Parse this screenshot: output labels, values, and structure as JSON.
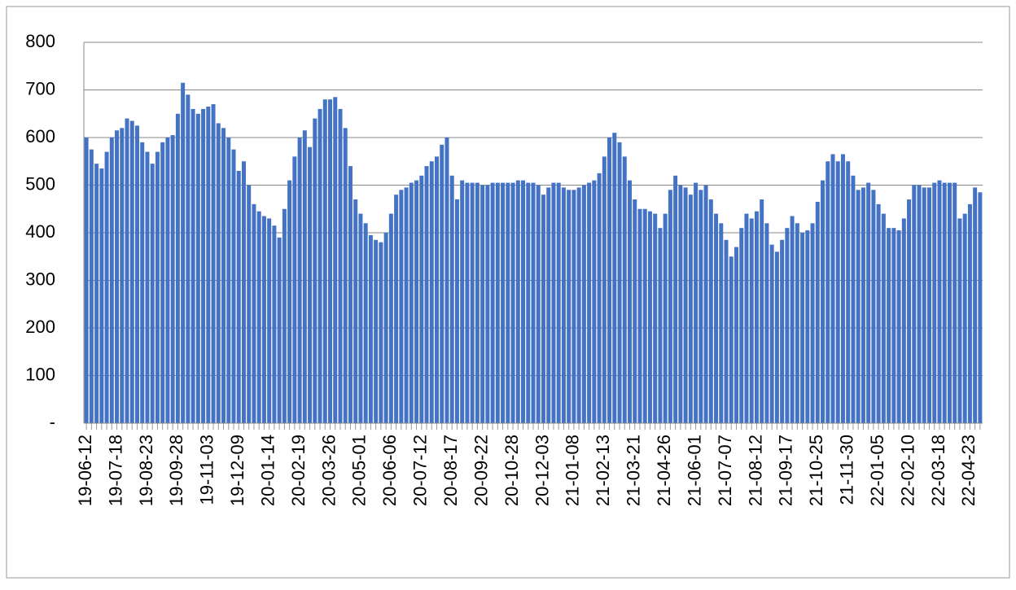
{
  "chart_data": {
    "type": "bar",
    "categories": [
      "19-06-12",
      null,
      null,
      null,
      null,
      null,
      "19-07-18",
      null,
      null,
      null,
      null,
      null,
      "19-08-23",
      null,
      null,
      null,
      null,
      null,
      "19-09-28",
      null,
      null,
      null,
      null,
      null,
      "19-11-03",
      null,
      null,
      null,
      null,
      null,
      "19-12-09",
      null,
      null,
      null,
      null,
      null,
      "20-01-14",
      null,
      null,
      null,
      null,
      null,
      "20-02-19",
      null,
      null,
      null,
      null,
      null,
      "20-03-26",
      null,
      null,
      null,
      null,
      null,
      "20-05-01",
      null,
      null,
      null,
      null,
      null,
      "20-06-06",
      null,
      null,
      null,
      null,
      null,
      "20-07-12",
      null,
      null,
      null,
      null,
      null,
      "20-08-17",
      null,
      null,
      null,
      null,
      null,
      "20-09-22",
      null,
      null,
      null,
      null,
      null,
      "20-10-28",
      null,
      null,
      null,
      null,
      null,
      "20-12-03",
      null,
      null,
      null,
      null,
      null,
      "21-01-08",
      null,
      null,
      null,
      null,
      null,
      "21-02-13",
      null,
      null,
      null,
      null,
      null,
      "21-03-21",
      null,
      null,
      null,
      null,
      null,
      "21-04-26",
      null,
      null,
      null,
      null,
      null,
      "21-06-01",
      null,
      null,
      null,
      null,
      null,
      "21-07-07",
      null,
      null,
      null,
      null,
      null,
      "21-08-12",
      null,
      null,
      null,
      null,
      null,
      "21-09-17",
      null,
      null,
      null,
      null,
      null,
      "21-10-25",
      null,
      null,
      null,
      null,
      null,
      "21-11-30",
      null,
      null,
      null,
      null,
      null,
      "22-01-05",
      null,
      null,
      null,
      null,
      null,
      "22-02-10",
      null,
      null,
      null,
      null,
      null,
      "22-03-18",
      null,
      null,
      null,
      null,
      null,
      "22-04-23",
      null,
      null
    ],
    "values": [
      600,
      575,
      545,
      535,
      570,
      600,
      615,
      620,
      640,
      635,
      625,
      590,
      570,
      545,
      570,
      590,
      600,
      605,
      650,
      715,
      690,
      660,
      650,
      660,
      665,
      670,
      630,
      620,
      600,
      575,
      530,
      550,
      500,
      460,
      445,
      435,
      430,
      415,
      390,
      450,
      510,
      560,
      600,
      615,
      580,
      640,
      660,
      680,
      680,
      685,
      660,
      620,
      540,
      470,
      440,
      420,
      395,
      385,
      380,
      400,
      440,
      480,
      490,
      495,
      505,
      510,
      520,
      540,
      550,
      560,
      585,
      600,
      520,
      470,
      510,
      505,
      505,
      505,
      500,
      500,
      505,
      505,
      505,
      505,
      505,
      510,
      510,
      505,
      505,
      500,
      480,
      495,
      505,
      505,
      495,
      490,
      490,
      495,
      500,
      505,
      510,
      525,
      560,
      600,
      610,
      590,
      560,
      510,
      470,
      450,
      450,
      445,
      440,
      410,
      440,
      490,
      520,
      500,
      495,
      480,
      505,
      490,
      500,
      470,
      440,
      420,
      385,
      350,
      370,
      410,
      440,
      430,
      445,
      470,
      420,
      375,
      360,
      385,
      410,
      435,
      420,
      400,
      405,
      420,
      465,
      510,
      550,
      565,
      550,
      565,
      550,
      520,
      490,
      495,
      505,
      490,
      460,
      440,
      410,
      410,
      405,
      430,
      470,
      500,
      500,
      495,
      495,
      505,
      510,
      505,
      505,
      505,
      430,
      440,
      460,
      495,
      485
    ],
    "color": "#4472c4",
    "ylim": [
      0,
      800
    ],
    "yticks": [
      {
        "value": 0,
        "label": "-"
      },
      100,
      200,
      300,
      400,
      500,
      600,
      700,
      800
    ],
    "grid": true
  }
}
